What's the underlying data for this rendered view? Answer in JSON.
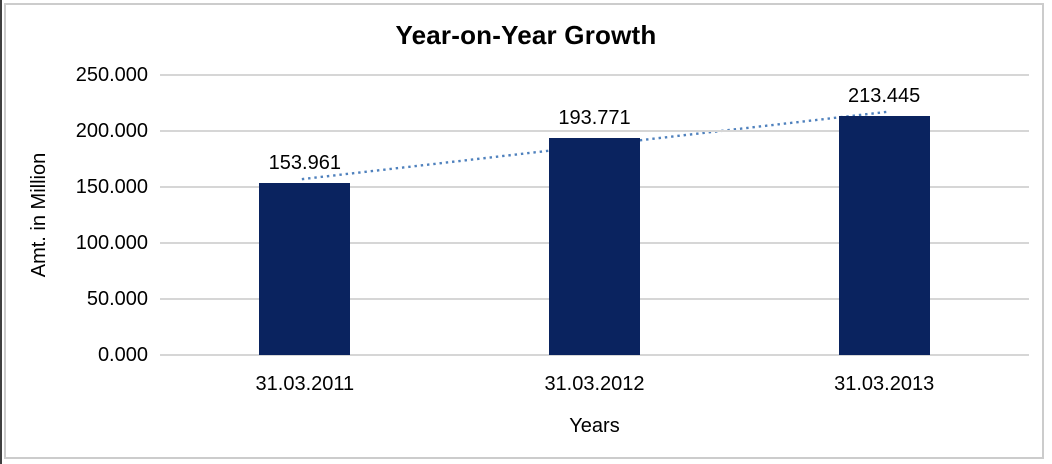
{
  "chart_data": {
    "type": "bar",
    "title": "Year-on-Year Growth",
    "categories": [
      "31.03.2011",
      "31.03.2012",
      "31.03.2013"
    ],
    "values": [
      153.961,
      193.771,
      213.445
    ],
    "data_labels": [
      "153.961",
      "193.771",
      "213.445"
    ],
    "xlabel": "Years",
    "ylabel": "Amt. in Million",
    "ylim": [
      0,
      250
    ],
    "ytick_labels": [
      "0.000",
      "50.000",
      "100.000",
      "150.000",
      "200.000",
      "250.000"
    ],
    "grid": true,
    "legend": "none",
    "bar_color": "#0a235f",
    "gridline_color": "#d6d6d6",
    "trendline": {
      "type": "linear",
      "style": "dotted",
      "color": "#4f81bd"
    }
  }
}
